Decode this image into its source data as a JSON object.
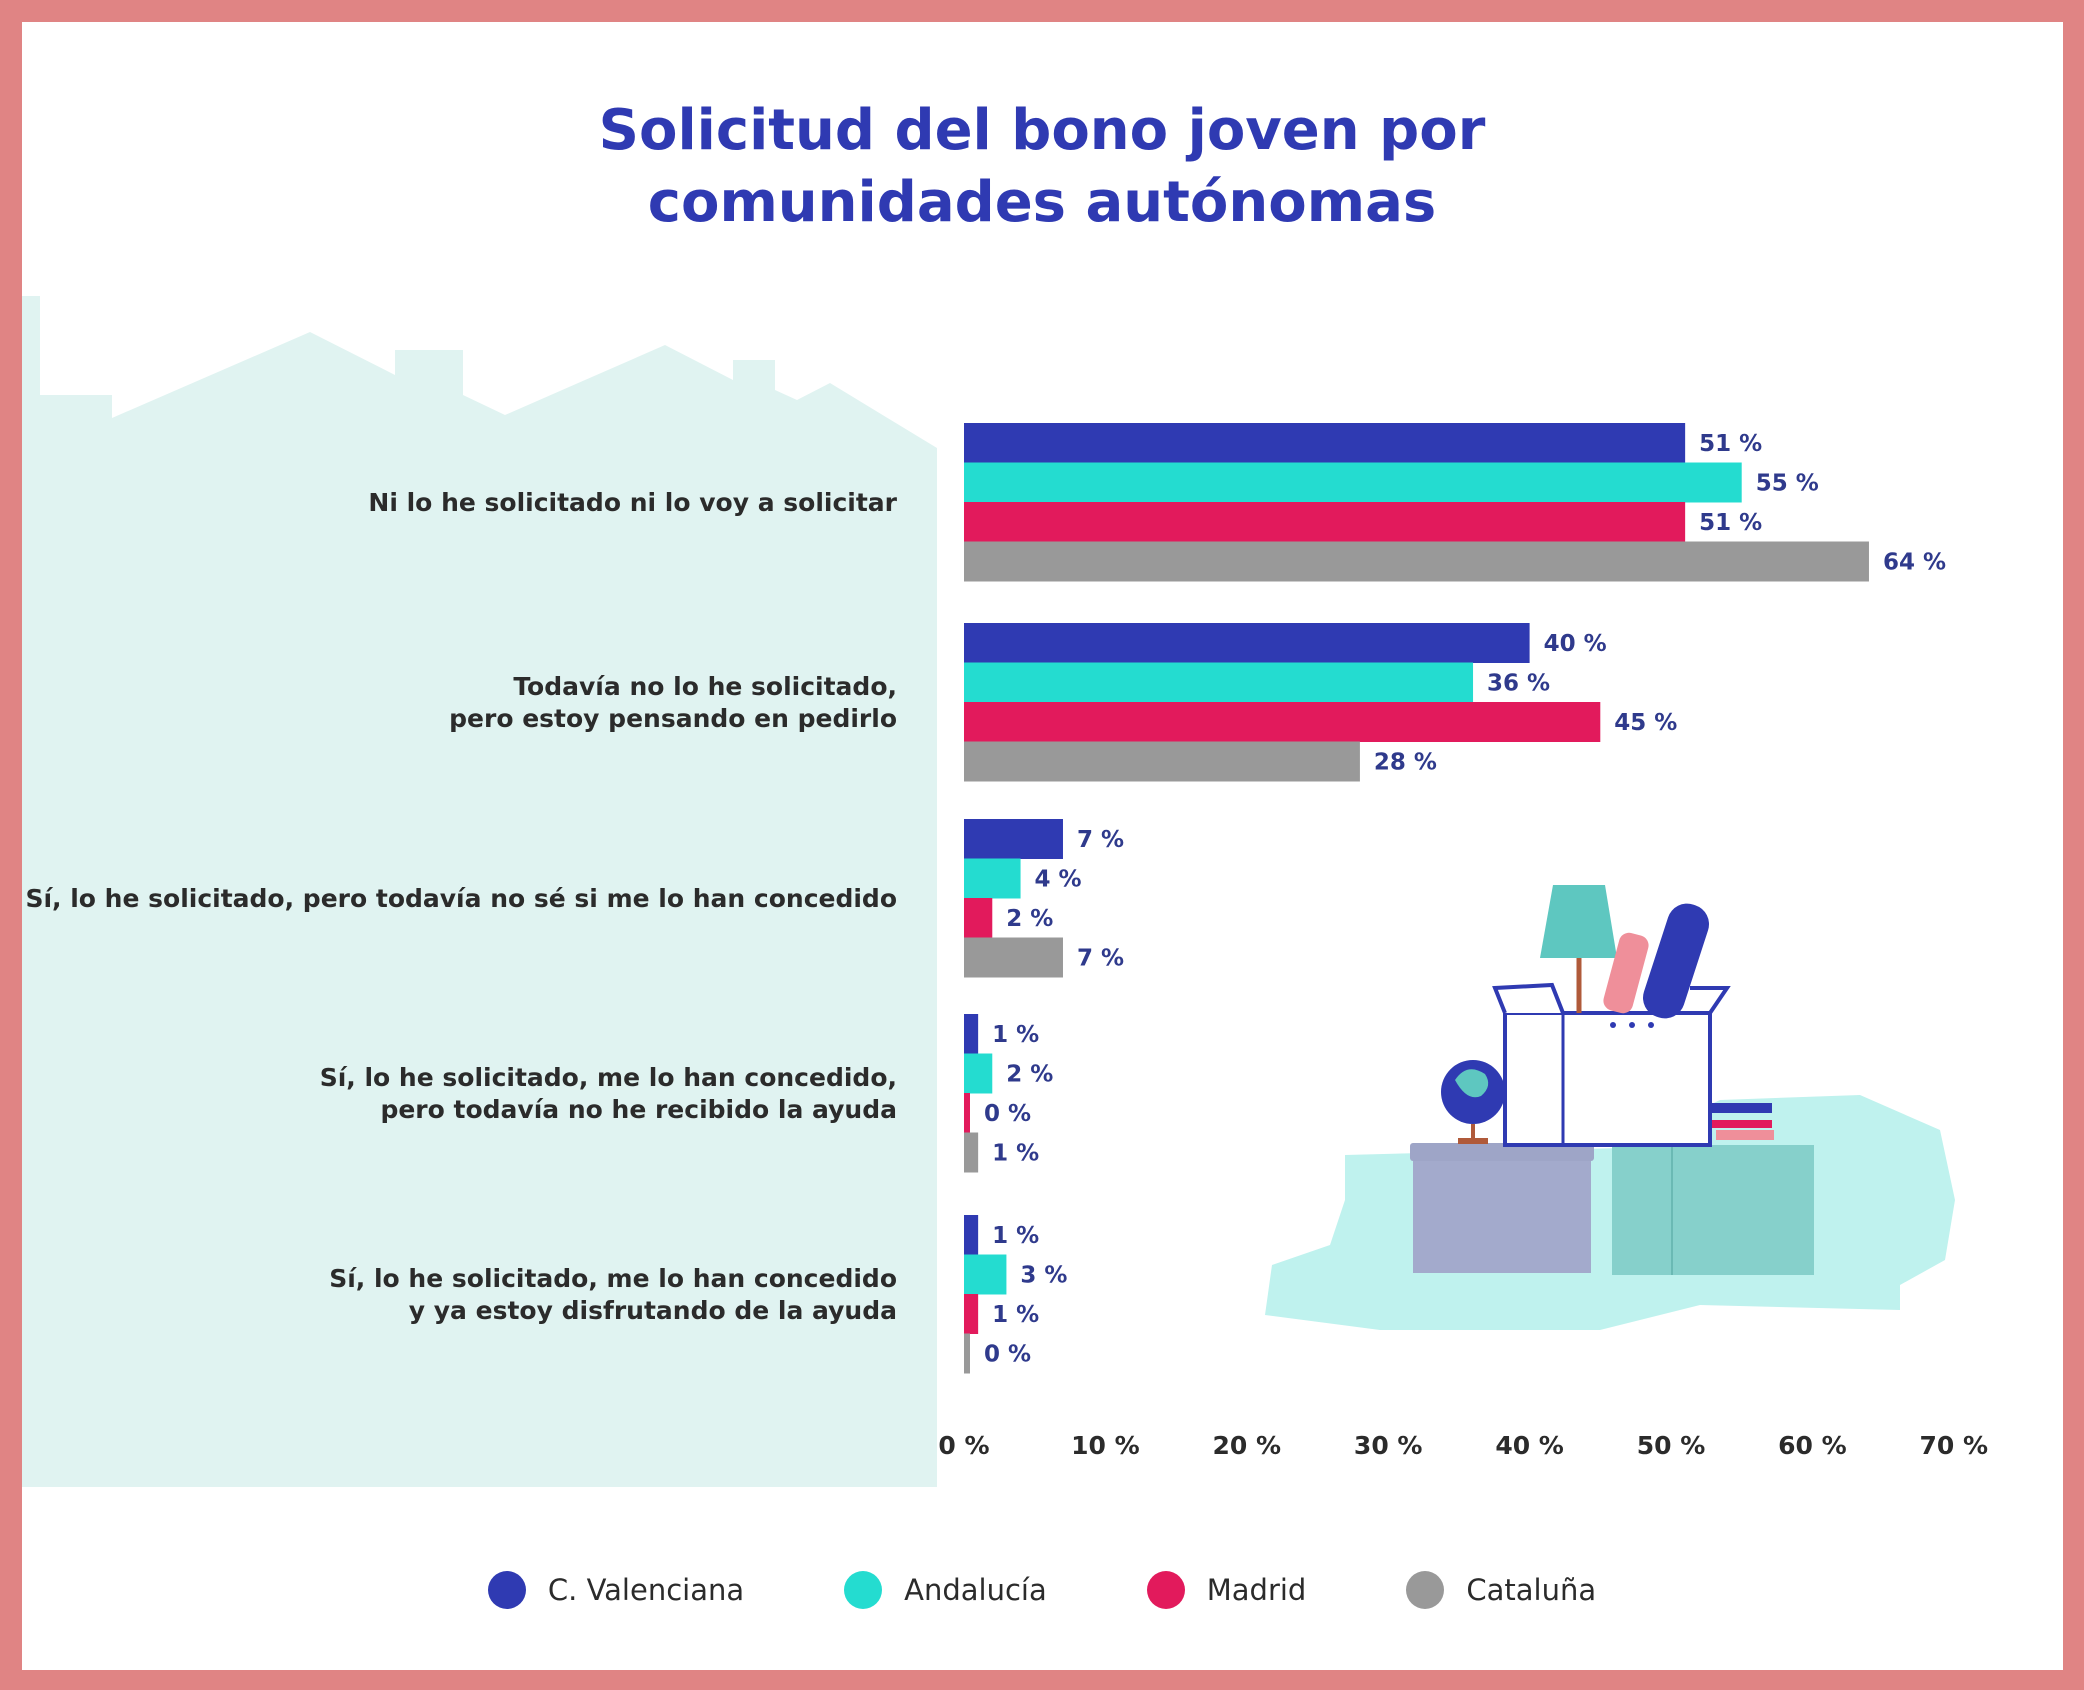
{
  "chart_data": {
    "type": "bar",
    "orientation": "horizontal",
    "title": "Solicitud del bono joven por comunidades autónomas",
    "title_lines": [
      "Solicitud del bono joven por",
      "comunidades autónomas"
    ],
    "categories": [
      "Ni lo he solicitado ni lo voy a solicitar",
      "Todavía no lo he solicitado, pero estoy pensando en pedirlo",
      "Sí, lo he solicitado, pero todavía no sé si me lo han concedido",
      "Sí, lo he solicitado, me lo han concedido, pero todavía no he recibido la ayuda",
      "Sí, lo he solicitado, me lo han concedido y ya estoy disfrutando de la ayuda"
    ],
    "category_lines": [
      [
        "Ni lo he solicitado ni lo voy a solicitar"
      ],
      [
        "Todavía no lo he solicitado,",
        "pero estoy pensando en pedirlo"
      ],
      [
        "Sí, lo he solicitado, pero todavía no sé si me lo han concedido"
      ],
      [
        "Sí, lo he solicitado, me lo han concedido,",
        "pero todavía no he recibido la ayuda"
      ],
      [
        "Sí, lo he solicitado, me lo han concedido",
        "y ya estoy disfrutando de la ayuda"
      ]
    ],
    "series": [
      {
        "name": "C. Valenciana",
        "color": "#2f3ab2",
        "values": [
          51,
          40,
          7,
          1,
          1
        ]
      },
      {
        "name": "Andalucía",
        "color": "#24dcd0",
        "values": [
          55,
          36,
          4,
          2,
          3
        ]
      },
      {
        "name": "Madrid",
        "color": "#e21a5c",
        "values": [
          51,
          45,
          2,
          0,
          1
        ]
      },
      {
        "name": "Cataluña",
        "color": "#999999",
        "values": [
          64,
          28,
          7,
          1,
          0
        ]
      }
    ],
    "value_suffix": " %",
    "xlim": [
      0,
      70
    ],
    "xticks": [
      0,
      10,
      20,
      30,
      40,
      50,
      60,
      70
    ],
    "xtick_labels": [
      "0 %",
      "10 %",
      "20 %",
      "30 %",
      "40 %",
      "50 %",
      "60 %",
      "70 %"
    ],
    "grid": false,
    "legend_position": "bottom"
  },
  "colors": {
    "frame": "#e08484",
    "panel": "#e0f3f1",
    "title": "#2f3ab2",
    "illustration_blob": "#bff2ee"
  },
  "illustration": "moving-box-furniture-illustration",
  "background_graphic": "house-rooftops-silhouette"
}
